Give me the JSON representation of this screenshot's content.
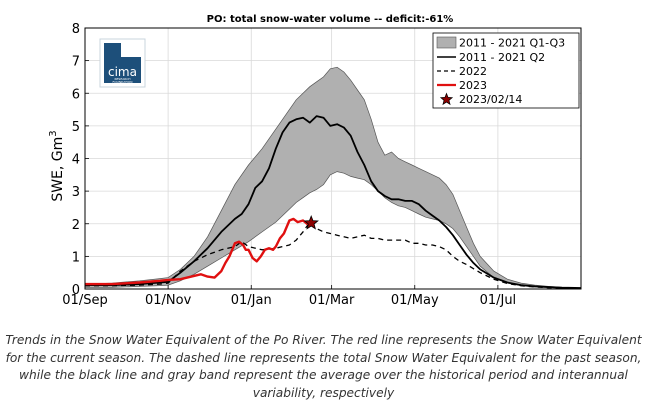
{
  "chart_data": {
    "type": "line",
    "title": "PO: total snow-water volume -- deficit:-61%",
    "ylabel": "SWE, Gm",
    "ylabel_sup": "3",
    "ylim": [
      0,
      8
    ],
    "yticks": [
      "0",
      "1",
      "2",
      "3",
      "4",
      "5",
      "6",
      "7",
      "8"
    ],
    "xticks": [
      "01/Sep",
      "01/Nov",
      "01/Jan",
      "01/Mar",
      "01/May",
      "01/Jul"
    ],
    "xtick_days": [
      0,
      61,
      122,
      181,
      242,
      303
    ],
    "xlim_days": [
      0,
      364
    ],
    "grid": true,
    "legend_position": "top-right",
    "legend": {
      "band": "2011 - 2021 Q1-Q3",
      "median": "2011 - 2021 Q2",
      "prev": "2022",
      "current": "2023",
      "marker": "2023/02/14"
    },
    "band": {
      "x": [
        0,
        20,
        40,
        55,
        61,
        70,
        80,
        90,
        100,
        110,
        120,
        130,
        140,
        150,
        155,
        160,
        165,
        170,
        175,
        180,
        185,
        190,
        195,
        200,
        205,
        210,
        215,
        220,
        225,
        230,
        235,
        240,
        245,
        250,
        255,
        260,
        265,
        270,
        275,
        280,
        285,
        290,
        300,
        310,
        320,
        330,
        340,
        350,
        364
      ],
      "q1": [
        0.05,
        0.05,
        0.08,
        0.1,
        0.12,
        0.25,
        0.45,
        0.7,
        0.95,
        1.2,
        1.45,
        1.75,
        2.05,
        2.45,
        2.65,
        2.8,
        2.95,
        3.05,
        3.2,
        3.5,
        3.6,
        3.55,
        3.45,
        3.4,
        3.35,
        3.2,
        3.0,
        2.8,
        2.65,
        2.55,
        2.5,
        2.4,
        2.3,
        2.2,
        2.15,
        2.1,
        2.0,
        1.85,
        1.6,
        1.3,
        1.0,
        0.7,
        0.35,
        0.18,
        0.1,
        0.06,
        0.04,
        0.03,
        0.02
      ],
      "q3": [
        0.15,
        0.18,
        0.25,
        0.32,
        0.35,
        0.6,
        1.0,
        1.6,
        2.4,
        3.2,
        3.8,
        4.3,
        4.9,
        5.5,
        5.8,
        6.0,
        6.2,
        6.35,
        6.5,
        6.75,
        6.8,
        6.65,
        6.4,
        6.1,
        5.8,
        5.2,
        4.5,
        4.1,
        4.2,
        4.0,
        3.9,
        3.8,
        3.7,
        3.6,
        3.5,
        3.4,
        3.2,
        2.9,
        2.4,
        1.9,
        1.4,
        1.0,
        0.55,
        0.3,
        0.18,
        0.12,
        0.08,
        0.05,
        0.03
      ]
    },
    "median": {
      "x": [
        0,
        20,
        40,
        55,
        61,
        70,
        80,
        90,
        100,
        110,
        115,
        120,
        125,
        130,
        135,
        140,
        145,
        150,
        155,
        160,
        165,
        170,
        175,
        180,
        185,
        190,
        195,
        200,
        205,
        210,
        215,
        220,
        225,
        230,
        235,
        240,
        245,
        250,
        255,
        260,
        265,
        270,
        275,
        280,
        285,
        290,
        300,
        310,
        320,
        330,
        340,
        350,
        364
      ],
      "y": [
        0.12,
        0.12,
        0.15,
        0.2,
        0.22,
        0.5,
        0.85,
        1.25,
        1.75,
        2.15,
        2.3,
        2.6,
        3.1,
        3.3,
        3.7,
        4.3,
        4.8,
        5.1,
        5.2,
        5.25,
        5.1,
        5.3,
        5.25,
        5.0,
        5.05,
        4.95,
        4.7,
        4.2,
        3.8,
        3.3,
        3.0,
        2.85,
        2.75,
        2.75,
        2.7,
        2.7,
        2.6,
        2.4,
        2.25,
        2.1,
        1.9,
        1.65,
        1.35,
        1.05,
        0.8,
        0.6,
        0.35,
        0.2,
        0.12,
        0.08,
        0.06,
        0.04,
        0.03
      ]
    },
    "prev": {
      "x": [
        0,
        20,
        40,
        55,
        61,
        70,
        80,
        90,
        100,
        110,
        115,
        120,
        130,
        140,
        150,
        155,
        160,
        165,
        170,
        175,
        180,
        185,
        190,
        195,
        200,
        205,
        210,
        215,
        220,
        225,
        230,
        235,
        240,
        245,
        250,
        255,
        260,
        265,
        270,
        275,
        280,
        290,
        300,
        310,
        320,
        330,
        340,
        350,
        364
      ],
      "y": [
        0.1,
        0.1,
        0.12,
        0.15,
        0.18,
        0.55,
        0.85,
        1.05,
        1.2,
        1.3,
        1.45,
        1.3,
        1.2,
        1.25,
        1.35,
        1.5,
        1.75,
        2.05,
        1.85,
        1.75,
        1.7,
        1.65,
        1.6,
        1.55,
        1.6,
        1.65,
        1.55,
        1.55,
        1.5,
        1.5,
        1.5,
        1.5,
        1.4,
        1.4,
        1.35,
        1.35,
        1.3,
        1.2,
        1.0,
        0.85,
        0.75,
        0.5,
        0.3,
        0.17,
        0.1,
        0.06,
        0.04,
        0.03,
        0.02
      ]
    },
    "current": {
      "x": [
        0,
        20,
        40,
        55,
        61,
        70,
        75,
        80,
        85,
        90,
        95,
        100,
        103,
        106,
        110,
        113,
        116,
        118,
        120,
        123,
        126,
        129,
        132,
        135,
        138,
        140,
        143,
        146,
        150,
        153,
        156,
        160,
        163,
        166
      ],
      "y": [
        0.15,
        0.15,
        0.2,
        0.25,
        0.28,
        0.3,
        0.35,
        0.4,
        0.45,
        0.38,
        0.35,
        0.55,
        0.8,
        1.0,
        1.4,
        1.45,
        1.35,
        1.2,
        1.2,
        0.95,
        0.85,
        1.0,
        1.2,
        1.25,
        1.2,
        1.3,
        1.55,
        1.7,
        2.1,
        2.15,
        2.05,
        2.1,
        2.0,
        2.02
      ]
    },
    "marker_point": {
      "x": 166,
      "y": 2.02
    }
  },
  "logo": {
    "main_text": "cima",
    "sub_text_1": "RESEARCH",
    "sub_text_2": "FOUNDATION"
  },
  "caption": "Trends in the Snow Water Equivalent of the Po River. The red line represents the Snow Water Equivalent for the current season. The dashed line represents the total Snow Water Equivalent for the past season, while the black line and gray band represent the average over the historical period and interannual variability, respectively"
}
